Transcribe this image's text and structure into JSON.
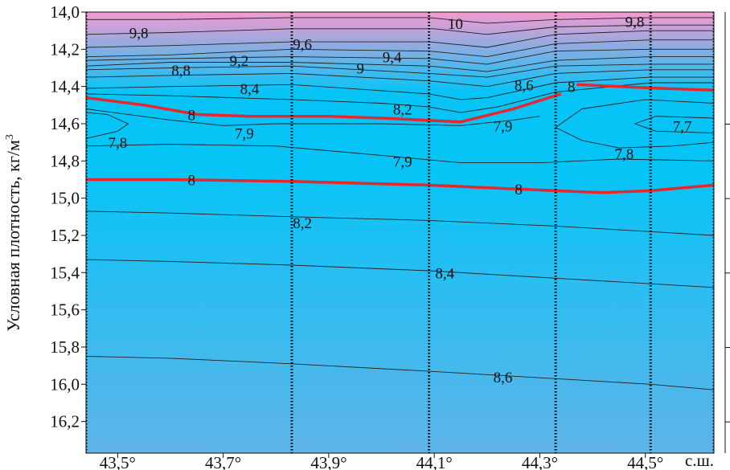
{
  "chart_data": {
    "type": "contour",
    "ylabel": "Условная плотность, кг/м",
    "ylabel_superscript": "3",
    "x_unit_label": "с.ш.",
    "xlim": [
      43.44,
      44.63
    ],
    "ylim": [
      16.37,
      14.0
    ],
    "y_inverted": true,
    "x_ticks": [
      43.5,
      43.7,
      43.9,
      44.1,
      44.3,
      44.5
    ],
    "x_tick_labels": [
      "43,5°",
      "43,7°",
      "43,9°",
      "44,1°",
      "44,3°",
      "44,5°"
    ],
    "y_ticks": [
      14.0,
      14.2,
      14.4,
      14.6,
      14.8,
      15.0,
      15.2,
      15.4,
      15.6,
      15.8,
      16.0,
      16.2
    ],
    "y_tick_labels": [
      "14,0",
      "14,2",
      "14,4",
      "14,6",
      "14,8",
      "15,0",
      "15,2",
      "15,4",
      "15,6",
      "15,8",
      "16,0",
      "16,2"
    ],
    "station_latitudes": [
      43.44,
      43.83,
      44.09,
      44.33,
      44.51,
      44.63
    ],
    "colors": {
      "warm": "#f59ad0",
      "cold": "#07c4f7",
      "deep": "#5fb4e8",
      "isoline_8": "#e8262b",
      "isoline": "#222222"
    },
    "contours": [
      {
        "value": 10,
        "highlight": false,
        "points": [
          [
            43.44,
            14.04
          ],
          [
            43.6,
            14.04
          ],
          [
            43.83,
            14.03
          ],
          [
            44.09,
            14.03
          ],
          [
            44.2,
            14.06
          ],
          [
            44.33,
            14.04
          ],
          [
            44.51,
            14.03
          ],
          [
            44.63,
            14.03
          ]
        ]
      },
      {
        "value": 9.8,
        "highlight": false,
        "points": [
          [
            43.44,
            14.12
          ],
          [
            43.6,
            14.11
          ],
          [
            43.83,
            14.09
          ],
          [
            44.0,
            14.09
          ],
          [
            44.1,
            14.09
          ],
          [
            44.2,
            14.12
          ],
          [
            44.33,
            14.08
          ],
          [
            44.51,
            14.07
          ],
          [
            44.63,
            14.07
          ]
        ]
      },
      {
        "value": 9.6,
        "highlight": false,
        "points": [
          [
            43.44,
            14.19
          ],
          [
            43.6,
            14.18
          ],
          [
            43.83,
            14.16
          ],
          [
            44.09,
            14.16
          ],
          [
            44.2,
            14.19
          ],
          [
            44.33,
            14.12
          ],
          [
            44.51,
            14.1
          ],
          [
            44.63,
            14.1
          ]
        ]
      },
      {
        "value": 9.4,
        "highlight": false,
        "points": [
          [
            43.44,
            14.24
          ],
          [
            43.6,
            14.23
          ],
          [
            43.83,
            14.2
          ],
          [
            44.09,
            14.21
          ],
          [
            44.2,
            14.24
          ],
          [
            44.33,
            14.17
          ],
          [
            44.51,
            14.15
          ],
          [
            44.63,
            14.15
          ]
        ]
      },
      {
        "value": 9.2,
        "highlight": false,
        "points": [
          [
            43.44,
            14.26
          ],
          [
            43.6,
            14.25
          ],
          [
            43.83,
            14.24
          ],
          [
            44.09,
            14.25
          ],
          [
            44.2,
            14.28
          ],
          [
            44.33,
            14.21
          ],
          [
            44.51,
            14.2
          ],
          [
            44.63,
            14.2
          ]
        ]
      },
      {
        "value": 9,
        "highlight": false,
        "points": [
          [
            43.44,
            14.29
          ],
          [
            43.6,
            14.27
          ],
          [
            43.83,
            14.27
          ],
          [
            44.09,
            14.29
          ],
          [
            44.2,
            14.32
          ],
          [
            44.33,
            14.26
          ],
          [
            44.51,
            14.24
          ],
          [
            44.63,
            14.24
          ]
        ]
      },
      {
        "value": 8.8,
        "highlight": false,
        "points": [
          [
            43.44,
            14.31
          ],
          [
            43.6,
            14.3
          ],
          [
            43.83,
            14.29
          ],
          [
            44.09,
            14.33
          ],
          [
            44.2,
            14.35
          ],
          [
            44.33,
            14.29
          ],
          [
            44.51,
            14.28
          ],
          [
            44.63,
            14.28
          ]
        ]
      },
      {
        "value": 8.6,
        "highlight": false,
        "points": [
          [
            43.44,
            14.35
          ],
          [
            43.6,
            14.34
          ],
          [
            43.83,
            14.33
          ],
          [
            44.09,
            14.37
          ],
          [
            44.2,
            14.4
          ],
          [
            44.33,
            14.33
          ],
          [
            44.51,
            14.31
          ],
          [
            44.63,
            14.31
          ]
        ]
      },
      {
        "value": 8.4,
        "highlight": false,
        "points": [
          [
            43.44,
            14.41
          ],
          [
            43.6,
            14.4
          ],
          [
            43.83,
            14.39
          ],
          [
            44.09,
            14.44
          ],
          [
            44.15,
            14.47
          ],
          [
            44.2,
            14.46
          ],
          [
            44.33,
            14.38
          ],
          [
            44.51,
            14.35
          ],
          [
            44.63,
            14.35
          ]
        ]
      },
      {
        "value": 8.2,
        "highlight": false,
        "points": [
          [
            43.44,
            14.44
          ],
          [
            43.6,
            14.45
          ],
          [
            43.83,
            14.47
          ],
          [
            44.0,
            14.49
          ],
          [
            44.09,
            14.51
          ],
          [
            44.15,
            14.54
          ],
          [
            44.22,
            14.51
          ],
          [
            44.33,
            14.43
          ],
          [
            44.51,
            14.38
          ],
          [
            44.63,
            14.38
          ]
        ]
      },
      {
        "value": 8,
        "highlight": true,
        "points": [
          [
            43.44,
            14.46
          ],
          [
            43.55,
            14.5
          ],
          [
            43.65,
            14.55
          ],
          [
            43.75,
            14.56
          ],
          [
            43.9,
            14.56
          ],
          [
            44.0,
            14.57
          ],
          [
            44.15,
            14.59
          ],
          [
            44.25,
            14.52
          ],
          [
            44.34,
            14.44
          ]
        ]
      },
      {
        "value": 8,
        "highlight": true,
        "points": [
          [
            44.37,
            14.39
          ],
          [
            44.45,
            14.4
          ],
          [
            44.53,
            14.41
          ],
          [
            44.63,
            14.42
          ]
        ]
      },
      {
        "value": 7.9,
        "highlight": false,
        "points": [
          [
            43.44,
            14.52
          ],
          [
            43.6,
            14.58
          ],
          [
            43.7,
            14.61
          ],
          [
            43.8,
            14.6
          ],
          [
            44.0,
            14.6
          ],
          [
            44.15,
            14.61
          ],
          [
            44.25,
            14.58
          ],
          [
            44.3,
            14.56
          ]
        ]
      },
      {
        "value": 7.9,
        "highlight": false,
        "points": [
          [
            43.44,
            14.72
          ],
          [
            43.6,
            14.71
          ],
          [
            43.8,
            14.72
          ],
          [
            44.0,
            14.77
          ],
          [
            44.15,
            14.81
          ],
          [
            44.3,
            14.81
          ],
          [
            44.45,
            14.79
          ],
          [
            44.63,
            14.8
          ]
        ]
      },
      {
        "value": 7.8,
        "highlight": false,
        "points": [
          [
            43.44,
            14.68
          ],
          [
            43.5,
            14.64
          ],
          [
            43.52,
            14.6
          ],
          [
            43.48,
            14.55
          ],
          [
            43.44,
            14.54
          ]
        ]
      },
      {
        "value": 7.8,
        "highlight": false,
        "points": [
          [
            44.63,
            14.49
          ],
          [
            44.5,
            14.47
          ],
          [
            44.38,
            14.52
          ],
          [
            44.33,
            14.62
          ],
          [
            44.38,
            14.69
          ],
          [
            44.45,
            14.73
          ],
          [
            44.55,
            14.72
          ],
          [
            44.63,
            14.7
          ]
        ]
      },
      {
        "value": 7.7,
        "highlight": false,
        "points": [
          [
            44.63,
            14.57
          ],
          [
            44.52,
            14.56
          ],
          [
            44.48,
            14.6
          ],
          [
            44.52,
            14.64
          ],
          [
            44.63,
            14.65
          ]
        ]
      },
      {
        "value": 8,
        "highlight": true,
        "points": [
          [
            43.44,
            14.9
          ],
          [
            43.6,
            14.9
          ],
          [
            43.83,
            14.91
          ],
          [
            44.09,
            14.93
          ],
          [
            44.33,
            14.96
          ],
          [
            44.42,
            14.97
          ],
          [
            44.51,
            14.96
          ],
          [
            44.63,
            14.93
          ]
        ]
      },
      {
        "value": 8.2,
        "highlight": false,
        "points": [
          [
            43.44,
            15.07
          ],
          [
            43.6,
            15.08
          ],
          [
            43.83,
            15.1
          ],
          [
            44.09,
            15.12
          ],
          [
            44.33,
            15.15
          ],
          [
            44.51,
            15.18
          ],
          [
            44.63,
            15.2
          ]
        ]
      },
      {
        "value": 8.4,
        "highlight": false,
        "points": [
          [
            43.44,
            15.33
          ],
          [
            43.6,
            15.34
          ],
          [
            43.83,
            15.36
          ],
          [
            44.09,
            15.39
          ],
          [
            44.33,
            15.43
          ],
          [
            44.51,
            15.46
          ],
          [
            44.63,
            15.48
          ]
        ]
      },
      {
        "value": 8.6,
        "highlight": false,
        "points": [
          [
            43.44,
            15.85
          ],
          [
            43.6,
            15.86
          ],
          [
            43.83,
            15.89
          ],
          [
            44.09,
            15.93
          ],
          [
            44.33,
            15.97
          ],
          [
            44.51,
            16.0
          ],
          [
            44.63,
            16.03
          ]
        ]
      }
    ],
    "contour_labels": [
      {
        "text": "10",
        "x": 44.14,
        "y": 14.06
      },
      {
        "text": "9,8",
        "x": 43.54,
        "y": 14.11
      },
      {
        "text": "9,8",
        "x": 44.48,
        "y": 14.05
      },
      {
        "text": "9,6",
        "x": 43.85,
        "y": 14.17
      },
      {
        "text": "9,4",
        "x": 44.02,
        "y": 14.24
      },
      {
        "text": "9,2",
        "x": 43.73,
        "y": 14.26
      },
      {
        "text": "9",
        "x": 43.96,
        "y": 14.3
      },
      {
        "text": "8,8",
        "x": 43.62,
        "y": 14.31
      },
      {
        "text": "8,6",
        "x": 44.27,
        "y": 14.39
      },
      {
        "text": "8,4",
        "x": 43.75,
        "y": 14.41
      },
      {
        "text": "8,2",
        "x": 44.04,
        "y": 14.52
      },
      {
        "text": "8",
        "x": 43.64,
        "y": 14.55
      },
      {
        "text": "8",
        "x": 44.36,
        "y": 14.4
      },
      {
        "text": "7,9",
        "x": 43.74,
        "y": 14.65
      },
      {
        "text": "7,9",
        "x": 44.23,
        "y": 14.61
      },
      {
        "text": "7,9",
        "x": 44.04,
        "y": 14.8
      },
      {
        "text": "7,8",
        "x": 43.5,
        "y": 14.7
      },
      {
        "text": "7,8",
        "x": 44.46,
        "y": 14.76
      },
      {
        "text": "7,7",
        "x": 44.57,
        "y": 14.61
      },
      {
        "text": "8",
        "x": 43.64,
        "y": 14.9
      },
      {
        "text": "8",
        "x": 44.26,
        "y": 14.95
      },
      {
        "text": "8,2",
        "x": 43.85,
        "y": 15.13
      },
      {
        "text": "8,4",
        "x": 44.12,
        "y": 15.4
      },
      {
        "text": "8,6",
        "x": 44.23,
        "y": 15.96
      }
    ]
  }
}
